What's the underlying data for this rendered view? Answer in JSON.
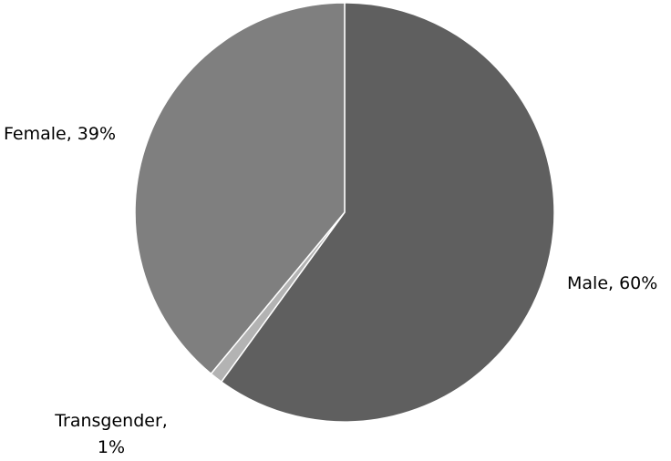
{
  "chart_data": {
    "type": "pie",
    "title": "",
    "slices": [
      {
        "label": "Male",
        "value": 60,
        "display": "Male, 60%",
        "color": "#5f5f5f"
      },
      {
        "label": "Transgender",
        "value": 1,
        "display_lines": [
          "Transgender,",
          "1%"
        ],
        "color": "#b3b3b3"
      },
      {
        "label": "Female",
        "value": 39,
        "display": "Female, 39%",
        "color": "#7f7f7f"
      }
    ],
    "start_angle": "12 o'clock",
    "direction": "clockwise",
    "legend": "none",
    "data_labels": "outside, category name and percentage"
  }
}
